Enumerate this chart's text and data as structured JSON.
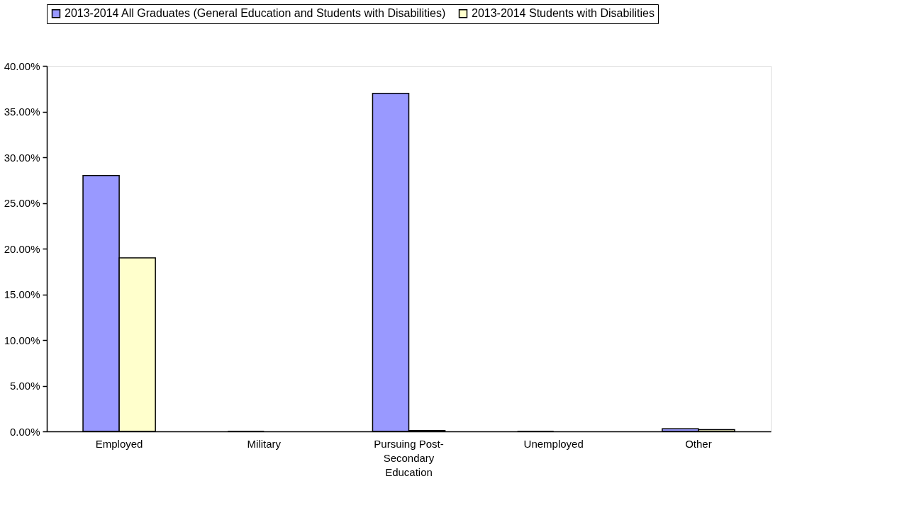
{
  "chart_data": {
    "type": "bar",
    "categories": [
      "Employed",
      "Military",
      "Pursuing Post-Secondary Education",
      "Unemployed",
      "Other"
    ],
    "series": [
      {
        "name": "2013-2014 All Graduates (General Education and Students with Disabilities)",
        "color": "#9999ff",
        "values": [
          28,
          0,
          37,
          0,
          0.3
        ]
      },
      {
        "name": "2013-2014 Students with Disabilities",
        "color": "#ffffcc",
        "values": [
          19,
          null,
          0.1,
          null,
          0.2
        ]
      }
    ],
    "ylim": [
      0,
      40
    ],
    "yticks": [
      {
        "value": 0,
        "label": "0.00%"
      },
      {
        "value": 5,
        "label": "5.00%"
      },
      {
        "value": 10,
        "label": "10.00%"
      },
      {
        "value": 15,
        "label": "15.00%"
      },
      {
        "value": 20,
        "label": "20.00%"
      },
      {
        "value": 25,
        "label": "25.00%"
      },
      {
        "value": 30,
        "label": "30.00%"
      },
      {
        "value": 35,
        "label": "35.00%"
      },
      {
        "value": 40,
        "label": "40.00%"
      }
    ],
    "grid": false,
    "legend": "top"
  }
}
